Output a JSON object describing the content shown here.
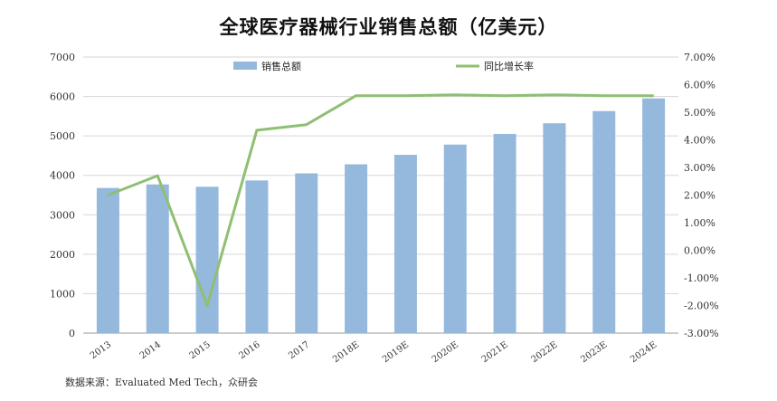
{
  "chart_data": {
    "type": "bar+line",
    "title": "全球医疗器械行业销售总额（亿美元）",
    "categories": [
      "2013",
      "2014",
      "2015",
      "2016",
      "2017",
      "2018E",
      "2019E",
      "2020E",
      "2021E",
      "2022E",
      "2023E",
      "2024E"
    ],
    "series": [
      {
        "name": "销售总额",
        "type": "bar",
        "axis": "left",
        "color": "#95b8dd",
        "values": [
          3680,
          3770,
          3710,
          3870,
          4050,
          4280,
          4520,
          4780,
          5050,
          5320,
          5630,
          5950
        ]
      },
      {
        "name": "同比增长率",
        "type": "line",
        "axis": "right",
        "color": "#8fbf73",
        "values": [
          0.02,
          0.027,
          -0.02,
          0.0435,
          0.0455,
          0.056,
          0.056,
          0.0563,
          0.056,
          0.0563,
          0.056,
          0.056
        ]
      }
    ],
    "left_axis": {
      "ylim": [
        0,
        7000
      ],
      "ticks": [
        0,
        1000,
        2000,
        3000,
        4000,
        5000,
        6000,
        7000
      ],
      "tick_labels": [
        "0",
        "1000",
        "2000",
        "3000",
        "4000",
        "5000",
        "6000",
        "7000"
      ]
    },
    "right_axis": {
      "ylim": [
        -0.03,
        0.07
      ],
      "ticks": [
        -0.03,
        -0.02,
        -0.01,
        0,
        0.01,
        0.02,
        0.03,
        0.04,
        0.05,
        0.06,
        0.07
      ],
      "tick_labels": [
        "-3.00%",
        "-2.00%",
        "-1.00%",
        "0.00%",
        "1.00%",
        "2.00%",
        "3.00%",
        "4.00%",
        "5.00%",
        "6.00%",
        "7.00%"
      ]
    },
    "grid": "horizontal",
    "legend_position": "top"
  },
  "source_text": "数据来源：Evaluated Med Tech，众研会"
}
